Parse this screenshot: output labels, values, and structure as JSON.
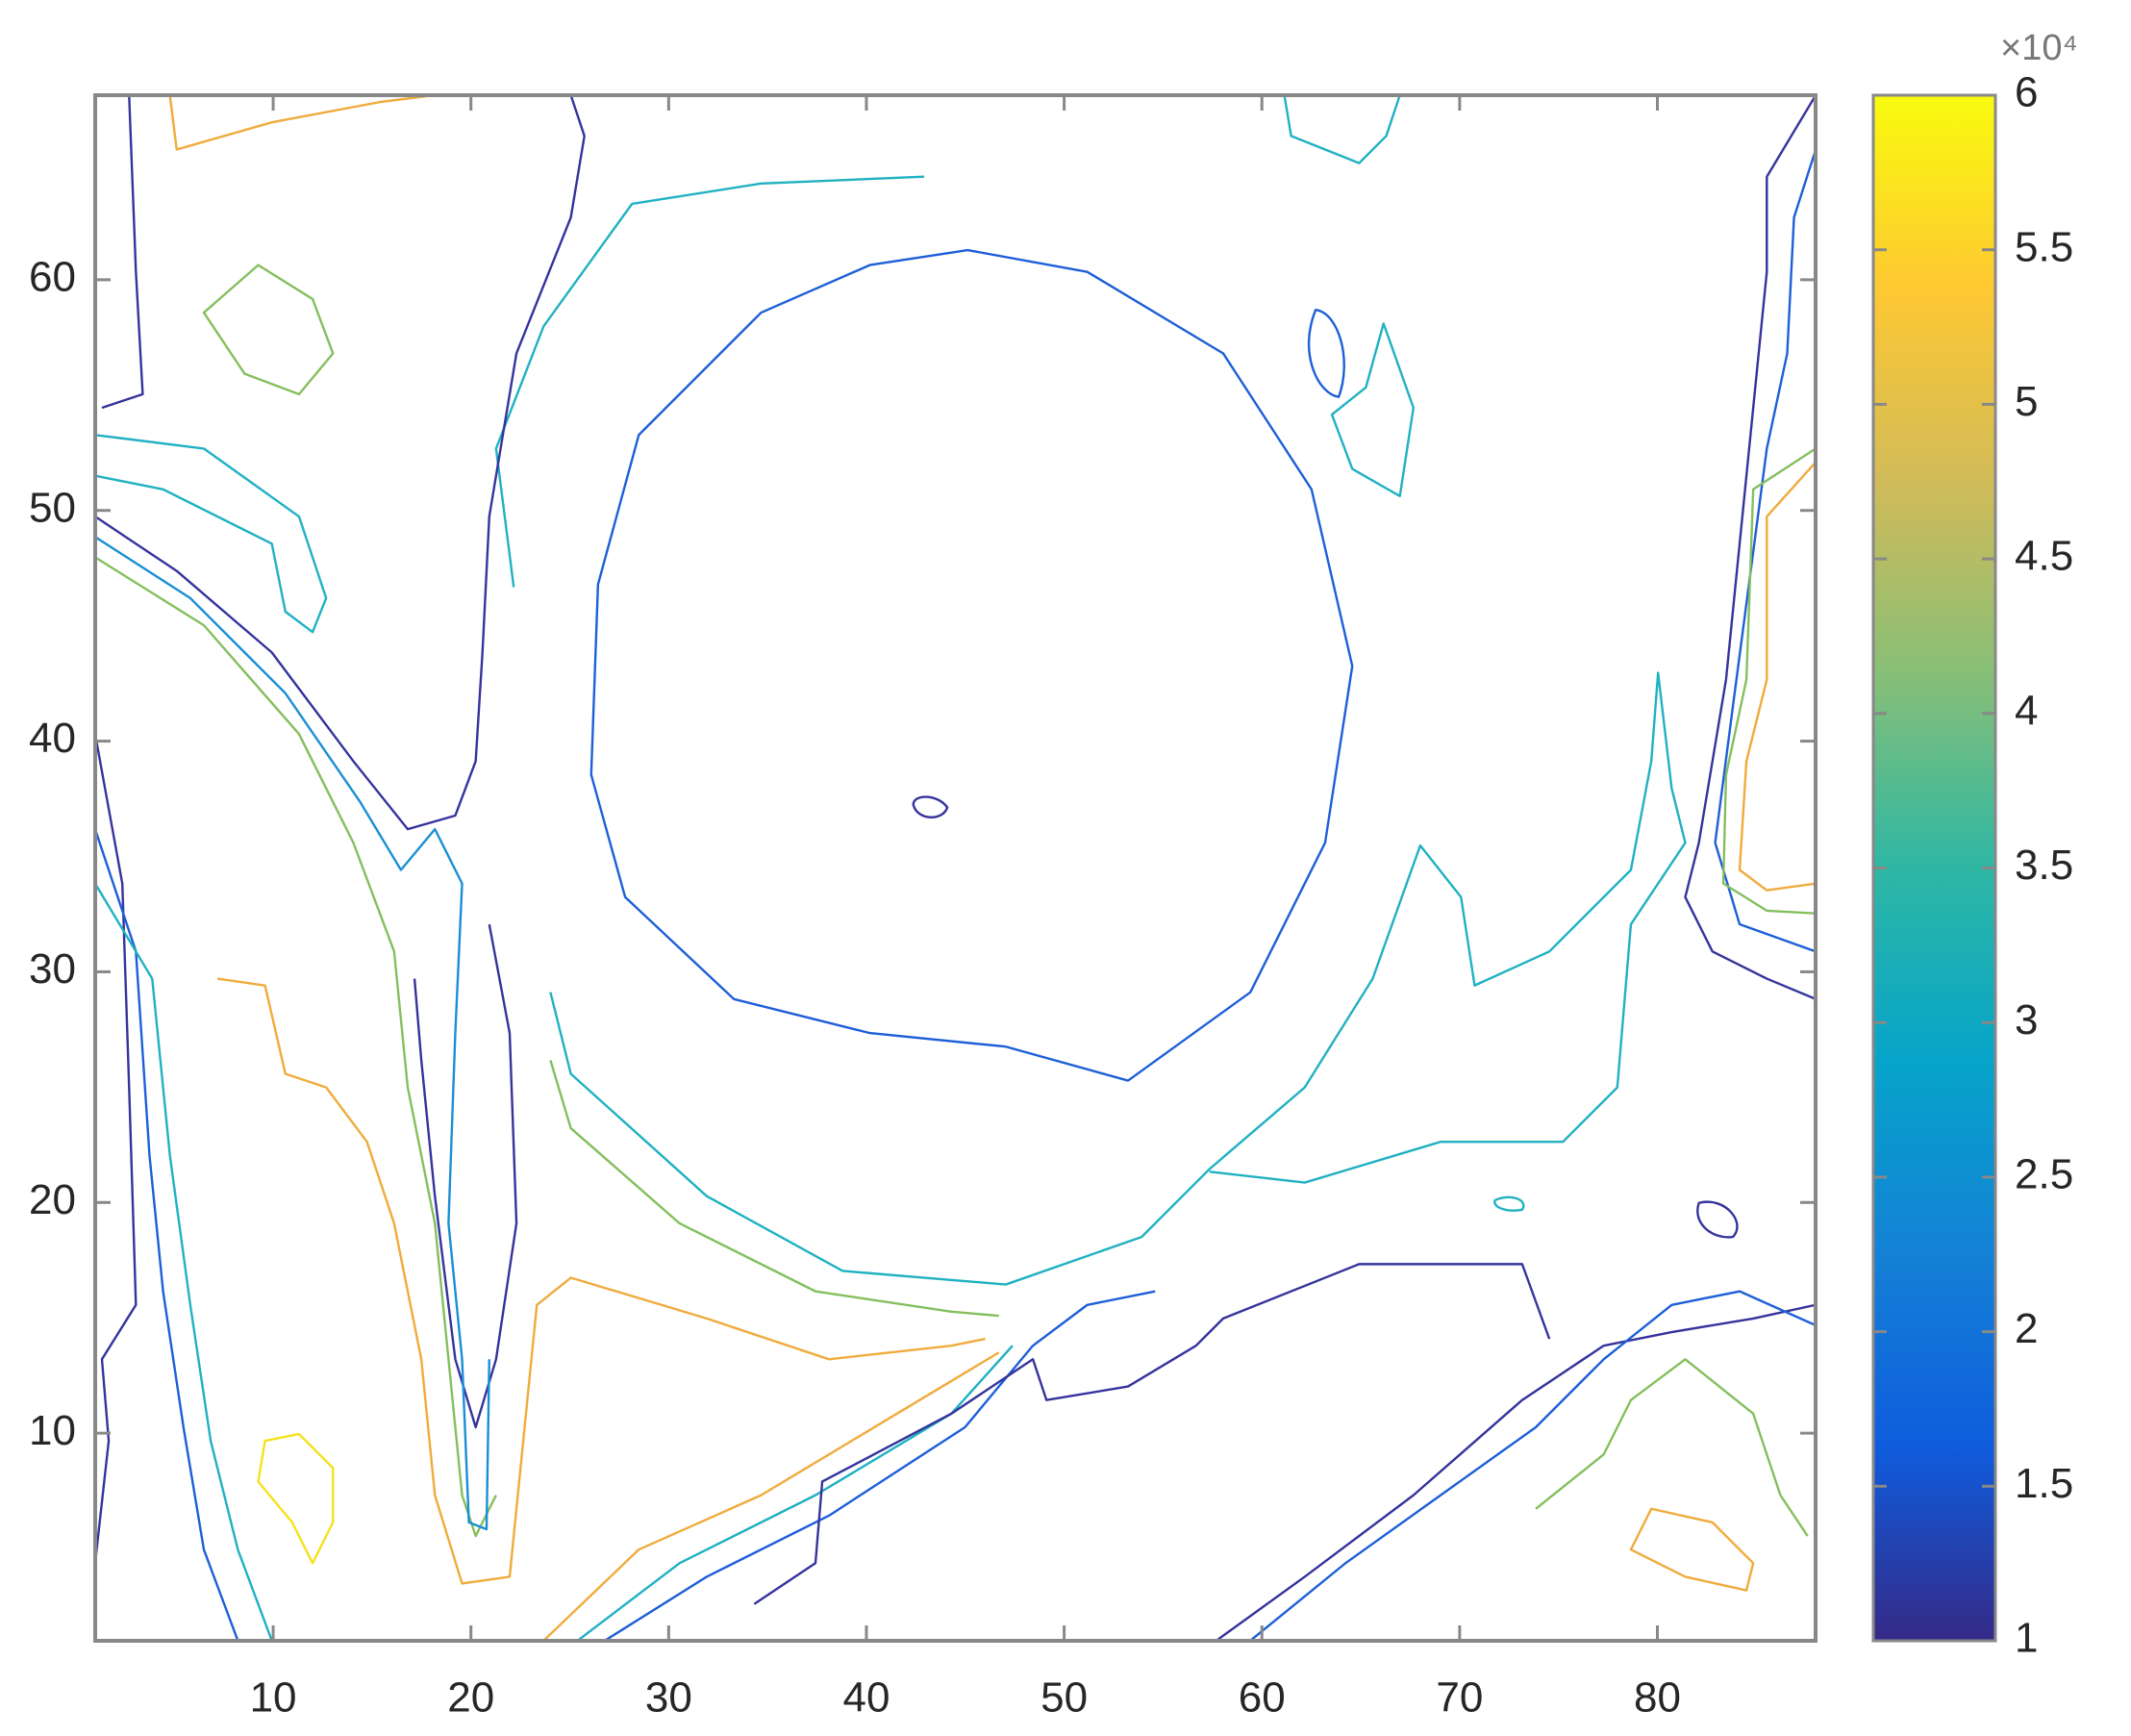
{
  "chart_data": {
    "type": "contour",
    "xlim": [
      1,
      88
    ],
    "ylim": [
      1,
      68
    ],
    "xticks": [
      10,
      20,
      30,
      40,
      50,
      60,
      70,
      80
    ],
    "yticks": [
      10,
      20,
      30,
      40,
      50,
      60
    ],
    "levels": [
      15000,
      20000,
      25000,
      30000,
      35000,
      40000,
      50000,
      55000
    ],
    "level_colors": [
      "#35339c",
      "#1d5fd8",
      "#1a8fd5",
      "#20b1c2",
      "#3fbd95",
      "#84bf5e",
      "#f0ab3c",
      "#f4e21c"
    ],
    "colorbar": {
      "clim": [
        10000,
        60000
      ],
      "colormap": [
        "#352a87",
        "#0f5cdd",
        "#1481d6",
        "#06a4ca",
        "#2eb7a4",
        "#87bf77",
        "#d1bb59",
        "#fec832",
        "#f9fb0e"
      ],
      "multiplier": "×10⁴",
      "ticks": [
        {
          "value": 10000,
          "label": "1"
        },
        {
          "value": 15000,
          "label": "1.5"
        },
        {
          "value": 20000,
          "label": "2"
        },
        {
          "value": 25000,
          "label": "2.5"
        },
        {
          "value": 30000,
          "label": "3"
        },
        {
          "value": 35000,
          "label": "3.5"
        },
        {
          "value": 40000,
          "label": "4"
        },
        {
          "value": 45000,
          "label": "4.5"
        },
        {
          "value": 50000,
          "label": "5"
        },
        {
          "value": 55000,
          "label": "5.5"
        },
        {
          "value": 60000,
          "label": "6"
        }
      ]
    }
  }
}
